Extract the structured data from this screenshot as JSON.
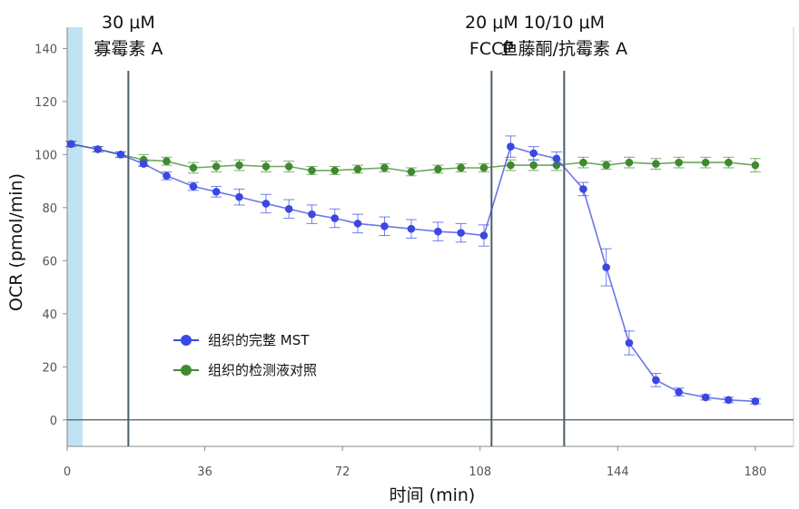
{
  "chart_data": {
    "type": "line",
    "title": "",
    "xlabel": "时间 (min)",
    "ylabel": "OCR (pmol/min)",
    "xlim": [
      0,
      190
    ],
    "ylim": [
      -10,
      148
    ],
    "xticks": [
      0,
      36,
      72,
      108,
      144,
      180
    ],
    "yticks": [
      0,
      20,
      40,
      60,
      80,
      100,
      120,
      140
    ],
    "grid": false,
    "legend_position": "center-left",
    "baseline_shade": [
      0,
      4
    ],
    "annotations": [
      {
        "x": 16,
        "lines": [
          "30 μM",
          "寡霉素 A"
        ]
      },
      {
        "x": 111,
        "lines": [
          "20 μM",
          "FCCP"
        ]
      },
      {
        "x": 130,
        "lines": [
          "10/10 μM",
          "鱼藤酮/抗霉素 A"
        ]
      }
    ],
    "series": [
      {
        "name": "组织的完整 MST",
        "color": "#3b48e0",
        "x": [
          1,
          8,
          14,
          20,
          26,
          33,
          39,
          45,
          52,
          58,
          64,
          70,
          76,
          83,
          90,
          97,
          103,
          109,
          116,
          122,
          128,
          135,
          141,
          147,
          154,
          160,
          167,
          173,
          180
        ],
        "y": [
          104,
          102,
          100,
          96.5,
          92,
          88,
          86,
          84,
          81.5,
          79.5,
          77.5,
          76,
          74,
          73,
          72,
          71,
          70.5,
          69.5,
          103,
          100.5,
          98.5,
          87,
          57.5,
          29,
          15,
          10.5,
          8.5,
          7.5,
          7
        ],
        "err": [
          1,
          1,
          1,
          1,
          1.5,
          1.5,
          2,
          3,
          3.5,
          3.5,
          3.5,
          3.5,
          3.5,
          3.5,
          3.5,
          3.5,
          3.5,
          4,
          4,
          2.5,
          2.5,
          2.5,
          7,
          4.5,
          2.5,
          1.5,
          1,
          1,
          1
        ]
      },
      {
        "name": "组织的检测液对照",
        "color": "#3f8a2e",
        "x": [
          1,
          8,
          14,
          20,
          26,
          33,
          39,
          45,
          52,
          58,
          64,
          70,
          76,
          83,
          90,
          97,
          103,
          109,
          116,
          122,
          128,
          135,
          141,
          147,
          154,
          160,
          167,
          173,
          180
        ],
        "y": [
          104,
          102,
          100,
          98,
          97.5,
          95,
          95.5,
          96,
          95.5,
          95.5,
          94,
          94,
          94.5,
          95,
          93.5,
          94.5,
          95,
          95,
          96,
          96,
          96,
          97,
          96,
          97,
          96.5,
          97,
          97,
          97,
          96
        ],
        "err": [
          1,
          1,
          1,
          2,
          1.5,
          2,
          2,
          2,
          2,
          2,
          1.5,
          1.5,
          1.5,
          1.5,
          1.5,
          1.5,
          1.5,
          1.5,
          2,
          2,
          2,
          2,
          1.5,
          2,
          2,
          2,
          2,
          2,
          2.5
        ]
      }
    ]
  }
}
